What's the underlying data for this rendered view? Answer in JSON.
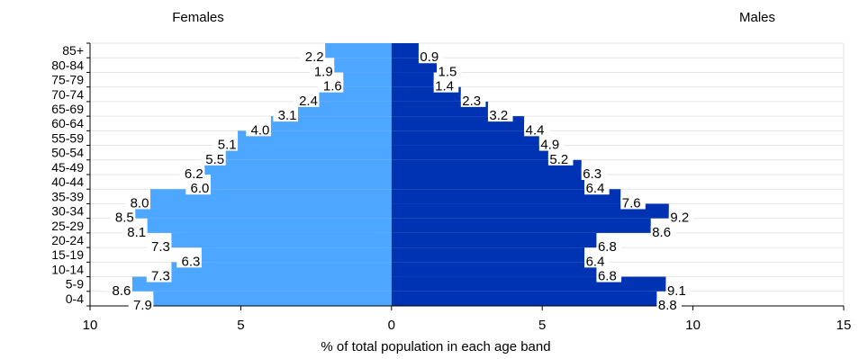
{
  "chart_data": {
    "type": "bar",
    "orientation": "horizontal-population-pyramid",
    "left_heading": "Females",
    "right_heading": "Males",
    "xlabel": "% of total population in each age band",
    "xlim": [
      -10,
      15
    ],
    "xticks": [
      -10,
      -5,
      0,
      5,
      10,
      15
    ],
    "xtick_labels": [
      "10",
      "5",
      "0",
      "5",
      "10",
      "15"
    ],
    "grid": "horizontal",
    "categories": [
      "85+",
      "80-84",
      "75-79",
      "70-74",
      "65-69",
      "60-64",
      "55-59",
      "50-54",
      "45-49",
      "40-44",
      "35-39",
      "30-34",
      "25-29",
      "20-24",
      "15-19",
      "10-14",
      "5-9",
      "0-4"
    ],
    "series": [
      {
        "key": "females",
        "color": "#4da6ff",
        "values": [
          2.2,
          1.9,
          1.6,
          2.4,
          3.1,
          4.0,
          5.1,
          5.5,
          6.2,
          6.0,
          8.0,
          8.5,
          8.1,
          7.3,
          6.3,
          7.3,
          8.6,
          7.9
        ],
        "value_labels": [
          "2.2",
          "1.9",
          "1.6",
          "2.4",
          "3.1",
          "4.0",
          "5.1",
          "5.5",
          "6.2",
          "6.0",
          "8.0",
          "8.5",
          "8.1",
          "7.3",
          "6.3",
          "7.3",
          "8.6",
          "7.9"
        ]
      },
      {
        "key": "males",
        "color": "#0033b3",
        "values": [
          0.9,
          1.5,
          1.4,
          2.3,
          3.2,
          4.4,
          4.9,
          5.2,
          6.3,
          6.4,
          7.6,
          9.2,
          8.6,
          6.8,
          6.4,
          6.8,
          9.1,
          8.8
        ],
        "value_labels": [
          "0.9",
          "1.5",
          "1.4",
          "2.3",
          "3.2",
          "4.4",
          "4.9",
          "5.2",
          "6.3",
          "6.4",
          "7.6",
          "9.2",
          "8.6",
          "6.8",
          "6.4",
          "6.8",
          "9.1",
          "8.8"
        ]
      }
    ]
  }
}
